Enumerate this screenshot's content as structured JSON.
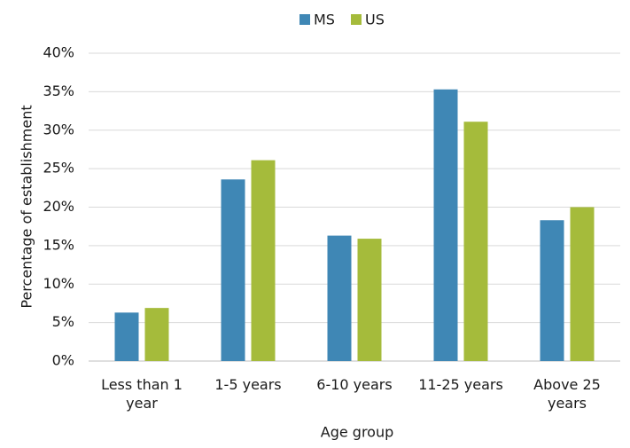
{
  "chart_data": {
    "type": "bar",
    "x_label": "Age group",
    "y_label": "Percentage of establishment",
    "categories": [
      "Less than 1 year",
      "1-5 years",
      "6-10 years",
      "11-25 years",
      "Above 25 years"
    ],
    "series": [
      {
        "name": "MS",
        "color": "#3f87b5",
        "values": [
          6.3,
          23.6,
          16.3,
          35.3,
          18.3
        ]
      },
      {
        "name": "US",
        "color": "#a5bb3b",
        "values": [
          6.9,
          26.1,
          15.9,
          31.1,
          20.0
        ]
      }
    ],
    "ylim": [
      0,
      40
    ],
    "yticks": [
      {
        "value": 0,
        "label": "0%"
      },
      {
        "value": 5,
        "label": "5%"
      },
      {
        "value": 10,
        "label": "10%"
      },
      {
        "value": 15,
        "label": "15%"
      },
      {
        "value": 20,
        "label": "20%"
      },
      {
        "value": 25,
        "label": "25%"
      },
      {
        "value": 30,
        "label": "30%"
      },
      {
        "value": 35,
        "label": "35%"
      },
      {
        "value": 40,
        "label": "40%"
      }
    ],
    "grid": true,
    "legend": "top"
  }
}
